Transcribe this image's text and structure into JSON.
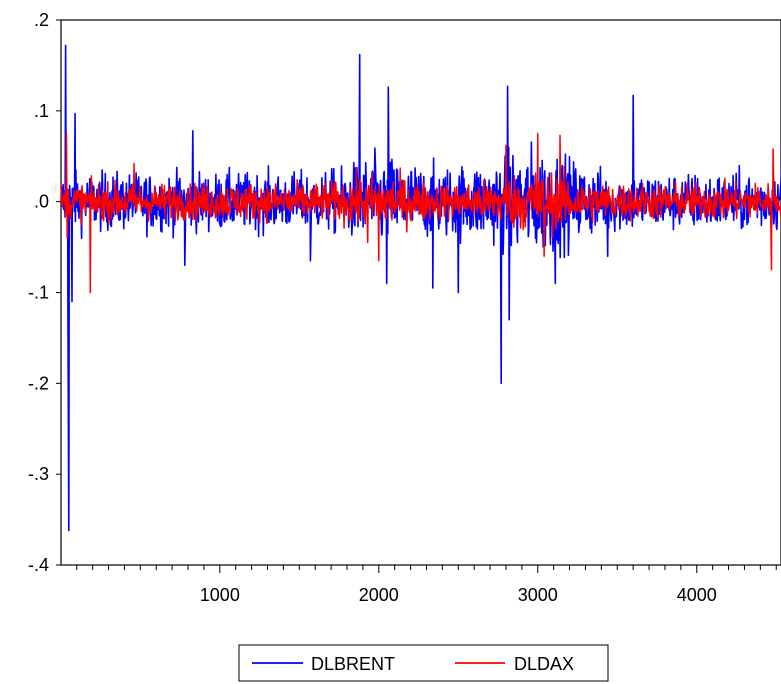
{
  "chart_data": {
    "type": "line",
    "title": "",
    "xlabel": "",
    "ylabel": "",
    "xlim": [
      1,
      4530
    ],
    "ylim": [
      -0.4,
      0.2
    ],
    "x_ticks": [
      1000,
      2000,
      3000,
      4000
    ],
    "x_tick_labels": [
      "1000",
      "2000",
      "3000",
      "4000"
    ],
    "y_ticks": [
      0.2,
      0.1,
      0.0,
      -0.1,
      -0.2,
      -0.3,
      -0.4
    ],
    "y_tick_labels": [
      ".2",
      ".1",
      ".0",
      "-.1",
      "-.2",
      "-.3",
      "-.4"
    ],
    "grid": false,
    "legend_position": "bottom-center",
    "series": [
      {
        "name": "DLBRENT",
        "color": "#0000ff",
        "amplitude": 0.022,
        "notable_points": [
          {
            "x": 30,
            "y": 0.172
          },
          {
            "x": 45,
            "y": -0.14
          },
          {
            "x": 50,
            "y": -0.362
          },
          {
            "x": 70,
            "y": -0.11
          },
          {
            "x": 90,
            "y": 0.097
          },
          {
            "x": 830,
            "y": 0.078
          },
          {
            "x": 780,
            "y": -0.07
          },
          {
            "x": 1570,
            "y": -0.065
          },
          {
            "x": 1880,
            "y": 0.162
          },
          {
            "x": 2060,
            "y": 0.126
          },
          {
            "x": 2050,
            "y": -0.09
          },
          {
            "x": 2340,
            "y": -0.095
          },
          {
            "x": 2500,
            "y": -0.1
          },
          {
            "x": 2770,
            "y": -0.2
          },
          {
            "x": 2810,
            "y": 0.127
          },
          {
            "x": 2820,
            "y": -0.13
          },
          {
            "x": 3110,
            "y": -0.09
          },
          {
            "x": 3600,
            "y": 0.117
          },
          {
            "x": 3440,
            "y": -0.06
          },
          {
            "x": 4550,
            "y": 0.08
          }
        ]
      },
      {
        "name": "DLDAX",
        "color": "#ff0000",
        "amplitude": 0.014,
        "notable_points": [
          {
            "x": 35,
            "y": 0.075
          },
          {
            "x": 40,
            "y": -0.04
          },
          {
            "x": 185,
            "y": -0.1
          },
          {
            "x": 460,
            "y": 0.042
          },
          {
            "x": 1930,
            "y": -0.045
          },
          {
            "x": 2000,
            "y": -0.065
          },
          {
            "x": 2800,
            "y": 0.062
          },
          {
            "x": 3000,
            "y": 0.075
          },
          {
            "x": 3040,
            "y": -0.06
          },
          {
            "x": 3140,
            "y": 0.073
          },
          {
            "x": 4480,
            "y": 0.058
          },
          {
            "x": 4470,
            "y": -0.075
          }
        ]
      }
    ]
  }
}
